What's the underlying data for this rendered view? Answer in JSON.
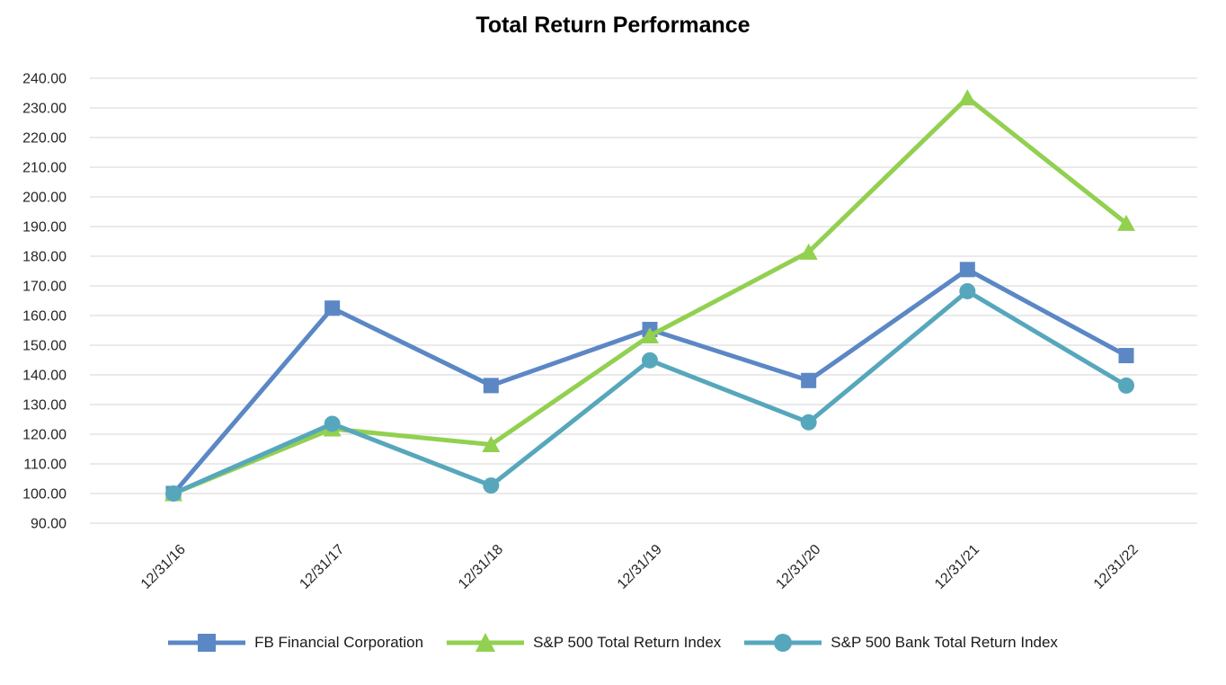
{
  "title": "Total Return Performance",
  "chart_data": {
    "type": "line",
    "title": "Total Return Performance",
    "categories": [
      "12/31/16",
      "12/31/17",
      "12/31/18",
      "12/31/19",
      "12/31/20",
      "12/31/21",
      "12/31/22"
    ],
    "series": [
      {
        "name": "FB Financial Corporation",
        "color": "#5B87C5",
        "marker": "square",
        "values": [
          100.0,
          162.5,
          136.4,
          155.3,
          138.1,
          175.5,
          146.5
        ]
      },
      {
        "name": "S&P 500 Total Return Index",
        "color": "#92D050",
        "marker": "triangle",
        "values": [
          100.0,
          121.8,
          116.5,
          153.2,
          181.4,
          233.4,
          191.1
        ]
      },
      {
        "name": "S&P 500 Bank Total Return Index",
        "color": "#57A7BC",
        "marker": "circle",
        "values": [
          100.0,
          123.5,
          102.7,
          144.9,
          124.0,
          168.2,
          136.4
        ]
      }
    ],
    "ylim": [
      90,
      240
    ],
    "y_tick_step": 10,
    "y_ticks": [
      "240.00",
      "230.00",
      "220.00",
      "210.00",
      "200.00",
      "190.00",
      "180.00",
      "170.00",
      "160.00",
      "150.00",
      "140.00",
      "130.00",
      "120.00",
      "110.00",
      "100.00",
      "90.00"
    ],
    "x_label_rotation_deg": 45,
    "grid": "horizontal",
    "gridline_color": "#E3E3E3",
    "legend_position": "bottom",
    "background": "#FFFFFF",
    "text_color": "#000000"
  }
}
